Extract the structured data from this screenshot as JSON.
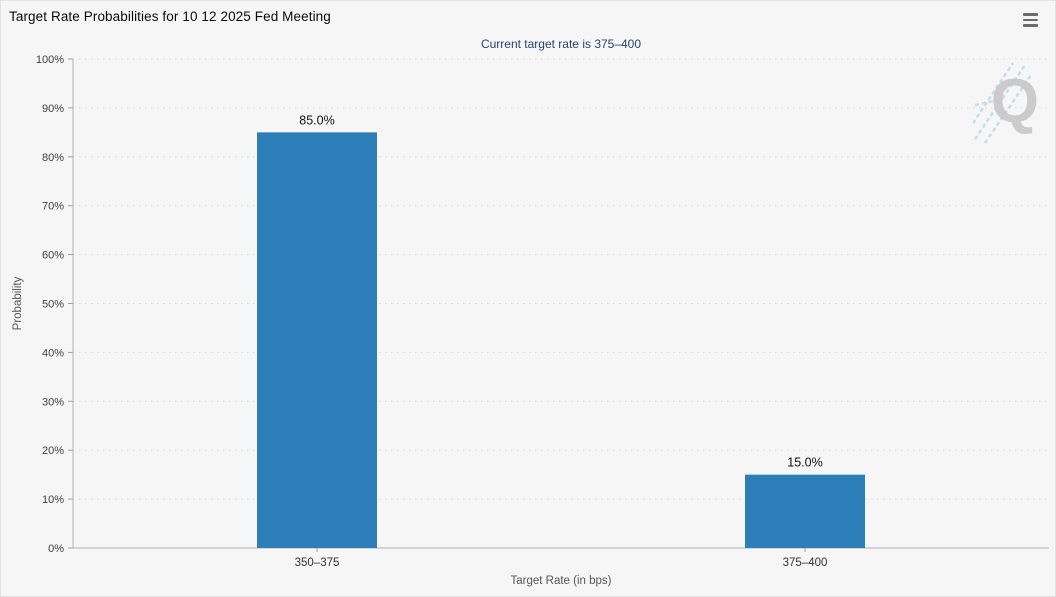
{
  "header": {
    "title": "Target Rate Probabilities for 10 12 2025 Fed Meeting"
  },
  "menu": {
    "icon": "hamburger-icon"
  },
  "chart_data": {
    "type": "bar",
    "subtitle": "Current target rate is 375–400",
    "categories": [
      "350–375",
      "375–400"
    ],
    "values": [
      85.0,
      15.0
    ],
    "value_labels": [
      "85.0%",
      "15.0%"
    ],
    "xlabel": "Target Rate (in bps)",
    "ylabel": "Probability",
    "ylim": [
      0,
      100
    ],
    "y_tick_step": 10,
    "y_tick_labels": [
      "0%",
      "10%",
      "20%",
      "30%",
      "40%",
      "50%",
      "60%",
      "70%",
      "80%",
      "90%",
      "100%"
    ],
    "grid": "horizontal-dotted",
    "legend_position": "none",
    "bar_color": "#2c7eb8",
    "watermark_text": "Q"
  },
  "colors": {
    "page_background": "#f6f6f6",
    "bar": "#2c7eb8",
    "title_text": "#0a0a0a",
    "subtitle_text": "#25456b",
    "gridline": "#d6d6d6",
    "watermark_gray": "#c7c7c7",
    "watermark_blue": "#b9d9ea"
  }
}
